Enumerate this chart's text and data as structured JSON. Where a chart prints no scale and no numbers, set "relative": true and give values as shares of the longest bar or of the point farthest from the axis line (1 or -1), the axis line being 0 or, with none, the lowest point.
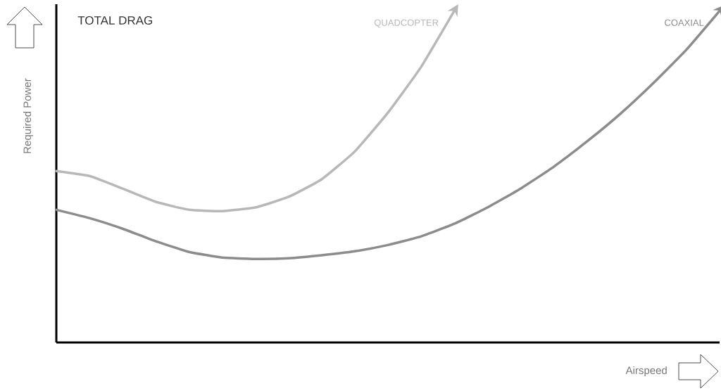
{
  "chart_data": {
    "type": "line",
    "title": "TOTAL DRAG",
    "xlabel": "Airspeed",
    "ylabel": "Required Power",
    "relative": true,
    "tick_labels": false,
    "categories": [
      null,
      null,
      null,
      null,
      null,
      null,
      null,
      null,
      null,
      null,
      null,
      null,
      null,
      null,
      null,
      null,
      null,
      null,
      null,
      null,
      null
    ],
    "series": [
      {
        "name": "QUADCOPTER",
        "color": "#b8b8b8",
        "values": [
          0.517,
          0.502,
          0.464,
          0.424,
          0.4,
          0.396,
          0.407,
          0.439,
          0.492,
          0.576,
          0.693,
          0.831,
          1.0,
          null,
          null,
          null,
          null,
          null,
          null,
          null,
          null
        ]
      },
      {
        "name": "COAXIAL",
        "color": "#8c8c8c",
        "values": [
          0.4,
          0.375,
          0.343,
          0.305,
          0.273,
          0.256,
          0.252,
          0.254,
          0.263,
          0.275,
          0.294,
          0.32,
          0.358,
          0.407,
          0.464,
          0.53,
          0.606,
          0.689,
          0.782,
          0.883,
          1.0
        ]
      }
    ]
  }
}
